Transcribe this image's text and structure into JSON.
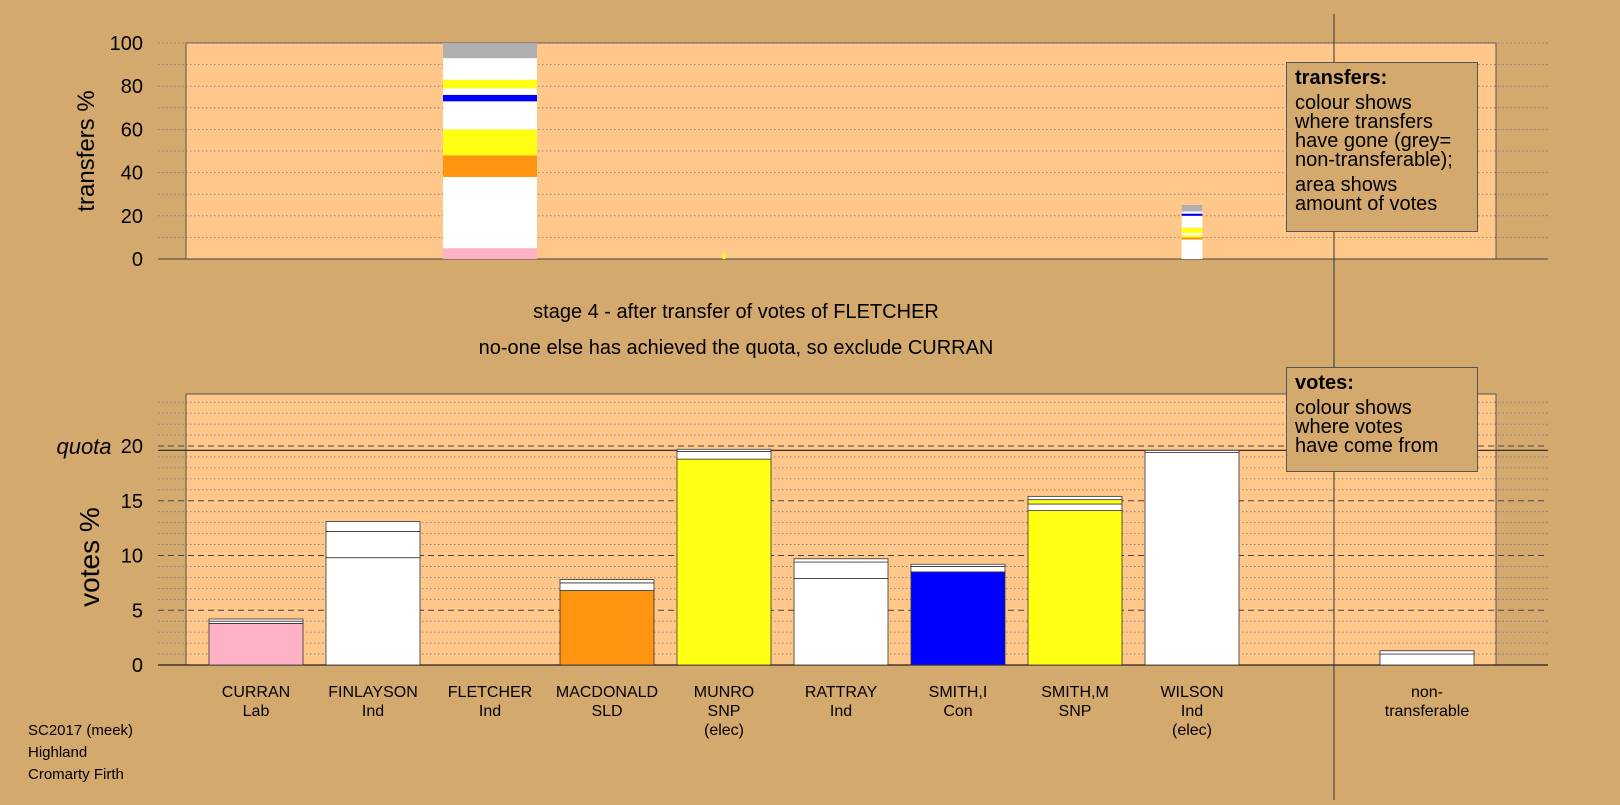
{
  "stage_text": "stage 4 - after transfer of votes of FLETCHER",
  "status_text": "no-one else has achieved the quota, so exclude CURRAN",
  "footer": {
    "line1": "SC2017 (meek)",
    "line2": "Highland",
    "line3": "Cromarty Firth"
  },
  "legend_transfers": {
    "title": "transfers:",
    "lines_a": [
      "colour shows",
      "where transfers",
      "have gone (grey=",
      "non-transferable);"
    ],
    "lines_b": [
      "area shows",
      "amount of votes"
    ]
  },
  "legend_votes": {
    "title": "votes:",
    "lines": [
      "colour shows",
      "where votes",
      "have come from"
    ]
  },
  "colors": {
    "background": "#d4a96e",
    "plot": "#ffc88a",
    "Lab": "#ffb2c6",
    "Ind": "#ffffff",
    "SLD": "#ff9410",
    "SNP": "#ffff14",
    "Con": "#0000ff",
    "nontransferable": "#b0b0b0"
  },
  "chart_data": [
    {
      "type": "bar",
      "ylabel": "transfers %",
      "ylim": [
        0,
        100
      ],
      "yticks": [
        0,
        20,
        40,
        60,
        80,
        100
      ],
      "grid": "dotted",
      "stacks": [
        {
          "candidate": "FLETCHER",
          "width_pct": 100,
          "segments": [
            {
              "party": "Lab",
              "value": 5
            },
            {
              "party": "Ind",
              "value": 33
            },
            {
              "party": "SLD",
              "value": 10
            },
            {
              "party": "SNP",
              "value": 12
            },
            {
              "party": "Ind",
              "value": 13
            },
            {
              "party": "Con",
              "value": 3
            },
            {
              "party": "Ind",
              "value": 3
            },
            {
              "party": "SNP",
              "value": 4
            },
            {
              "party": "Ind",
              "value": 10
            },
            {
              "party": "nontransferable",
              "value": 7
            }
          ]
        },
        {
          "candidate": "MUNRO",
          "width_pct": 3,
          "segments": [
            {
              "party": "SNP",
              "value": 3
            }
          ]
        },
        {
          "candidate": "WILSON",
          "width_pct": 22,
          "segments": [
            {
              "party": "Ind",
              "value": 9
            },
            {
              "party": "SLD",
              "value": 1
            },
            {
              "party": "SNP",
              "value": 1
            },
            {
              "party": "Ind",
              "value": 1
            },
            {
              "party": "SNP",
              "value": 2.5
            },
            {
              "party": "Ind",
              "value": 5.5
            },
            {
              "party": "Con",
              "value": 1
            },
            {
              "party": "Ind",
              "value": 1
            },
            {
              "party": "nontransferable",
              "value": 3
            }
          ]
        }
      ]
    },
    {
      "type": "bar",
      "ylabel": "votes %",
      "ylim": [
        0,
        20
      ],
      "yticks": [
        0,
        5,
        10,
        15,
        20
      ],
      "quota": 19.6,
      "quota_label": "quota",
      "grid": "dashed-major dotted-minor",
      "candidates": [
        {
          "name": "CURRAN",
          "party": "Lab",
          "elec": "",
          "segments": [
            {
              "party": "Lab",
              "value": 3.8
            },
            {
              "party": "Ind",
              "value": 0.2
            },
            {
              "party": "Ind",
              "value": 0.2
            }
          ]
        },
        {
          "name": "FINLAYSON",
          "party": "Ind",
          "elec": "",
          "segments": [
            {
              "party": "Ind",
              "value": 9.8
            },
            {
              "party": "Ind",
              "value": 2.4
            },
            {
              "party": "Ind",
              "value": 0.9
            }
          ]
        },
        {
          "name": "FLETCHER",
          "party": "Ind",
          "elec": "",
          "segments": []
        },
        {
          "name": "MACDONALD",
          "party": "SLD",
          "elec": "",
          "segments": [
            {
              "party": "SLD",
              "value": 6.8
            },
            {
              "party": "Ind",
              "value": 0.7
            },
            {
              "party": "Ind",
              "value": 0.3
            }
          ]
        },
        {
          "name": "MUNRO",
          "party": "SNP",
          "elec": "(elec)",
          "segments": [
            {
              "party": "SNP",
              "value": 18.8
            },
            {
              "party": "Ind",
              "value": 0.7
            },
            {
              "party": "Ind",
              "value": 0.2
            }
          ]
        },
        {
          "name": "RATTRAY",
          "party": "Ind",
          "elec": "",
          "segments": [
            {
              "party": "Ind",
              "value": 7.9
            },
            {
              "party": "Ind",
              "value": 1.5
            },
            {
              "party": "Ind",
              "value": 0.3
            }
          ]
        },
        {
          "name": "SMITH,I",
          "party": "Con",
          "elec": "",
          "segments": [
            {
              "party": "Con",
              "value": 8.5
            },
            {
              "party": "Ind",
              "value": 0.5
            },
            {
              "party": "Ind",
              "value": 0.2
            }
          ]
        },
        {
          "name": "SMITH,M",
          "party": "SNP",
          "elec": "",
          "segments": [
            {
              "party": "SNP",
              "value": 14.1
            },
            {
              "party": "Ind",
              "value": 0.6
            },
            {
              "party": "SNP",
              "value": 0.4
            },
            {
              "party": "Ind",
              "value": 0.3
            }
          ]
        },
        {
          "name": "WILSON",
          "party": "Ind",
          "elec": "(elec)",
          "segments": [
            {
              "party": "Ind",
              "value": 19.4
            },
            {
              "party": "Ind",
              "value": 0.2
            }
          ]
        }
      ],
      "nontransferable": {
        "line1": "non-",
        "line2": "transferable",
        "segments": [
          {
            "party": "Ind",
            "value": 1.0
          },
          {
            "party": "Ind",
            "value": 0.3
          }
        ]
      }
    }
  ]
}
